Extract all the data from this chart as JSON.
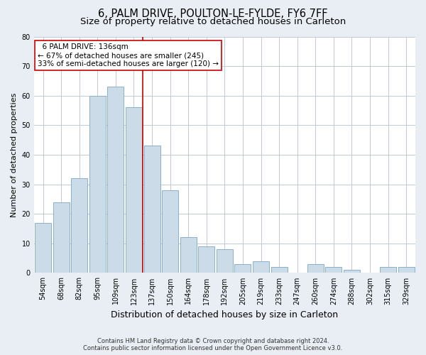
{
  "title1": "6, PALM DRIVE, POULTON-LE-FYLDE, FY6 7FF",
  "title2": "Size of property relative to detached houses in Carleton",
  "xlabel": "Distribution of detached houses by size in Carleton",
  "ylabel": "Number of detached properties",
  "footer1": "Contains HM Land Registry data © Crown copyright and database right 2024.",
  "footer2": "Contains public sector information licensed under the Open Government Licence v3.0.",
  "annotation_line1": "  6 PALM DRIVE: 136sqm  ",
  "annotation_line2": "← 67% of detached houses are smaller (245)",
  "annotation_line3": "33% of semi-detached houses are larger (120) →",
  "bar_color": "#ccdbe8",
  "bar_edge_color": "#8ab0cc",
  "ref_line_color": "#cc0000",
  "categories": [
    "54sqm",
    "68sqm",
    "82sqm",
    "95sqm",
    "109sqm",
    "123sqm",
    "137sqm",
    "150sqm",
    "164sqm",
    "178sqm",
    "192sqm",
    "205sqm",
    "219sqm",
    "233sqm",
    "247sqm",
    "260sqm",
    "274sqm",
    "288sqm",
    "302sqm",
    "315sqm",
    "329sqm"
  ],
  "values": [
    17,
    24,
    32,
    60,
    63,
    56,
    43,
    28,
    12,
    9,
    8,
    3,
    4,
    2,
    0,
    3,
    2,
    1,
    0,
    2,
    2
  ],
  "ylim": [
    0,
    80
  ],
  "yticks": [
    0,
    10,
    20,
    30,
    40,
    50,
    60,
    70,
    80
  ],
  "bg_color": "#e8eef4",
  "plot_bg_color": "#ffffff",
  "grid_color": "#c0cad6",
  "title_fontsize": 10.5,
  "subtitle_fontsize": 9.5,
  "tick_fontsize": 7,
  "ylabel_fontsize": 8,
  "xlabel_fontsize": 9,
  "footer_fontsize": 6,
  "annot_fontsize": 7.5
}
